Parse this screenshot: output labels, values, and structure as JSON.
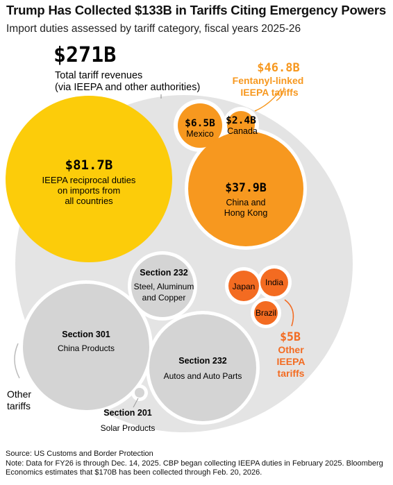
{
  "header": {
    "title": "Trump Has Collected $133B in Tariffs Citing Emergency Powers",
    "subtitle": "Import duties assessed by tariff category, fiscal years 2025-26"
  },
  "footer": {
    "source": "Source: US Customs and Border Protection",
    "note_line1": "Note: Data for FY26 is through Dec. 14, 2025. CBP began collecting IEEPA duties in February 2025. Bloomberg",
    "note_line2": "Economics estimates that $170B has been collected through Feb. 20, 2026."
  },
  "colors": {
    "total": "#e4e4e4",
    "ieepa_reciprocal": "#fccc0a",
    "fentanyl": "#f7981f",
    "other_ieepa": "#f36b21",
    "other_tariffs": "#d4d4d4",
    "accent_text": "#f7981f"
  },
  "chart_data": {
    "type": "bubble",
    "total": {
      "value": "$271B",
      "label_line1": "Total tariff revenues",
      "label_line2": "(via IEEPA and other authorities)"
    },
    "ieepa_reciprocal": {
      "value": "$81.7B",
      "label_line1": "IEEPA reciprocal duties",
      "label_line2": "on imports from",
      "label_line3": "all countries"
    },
    "fentanyl": {
      "value": "$46.8B",
      "label_line1": "Fentanyl-linked",
      "label_line2": "IEEPA tariffs",
      "items": [
        {
          "name": "Mexico",
          "value": "$6.5B"
        },
        {
          "name": "Canada",
          "value": "$2.4B"
        },
        {
          "name_line1": "China and",
          "name_line2": "Hong Kong",
          "value": "$37.9B"
        }
      ]
    },
    "other_ieepa": {
      "value": "$5B",
      "label_line1": "Other",
      "label_line2": "IEEPA",
      "label_line3": "tariffs",
      "items": [
        "Japan",
        "India",
        "Brazil"
      ]
    },
    "other_tariffs": {
      "label_line1": "Other",
      "label_line2": "tariffs",
      "items": [
        {
          "section": "Section 232",
          "line1": "Steel, Aluminum",
          "line2": "and Copper"
        },
        {
          "section": "Section 301",
          "line1": "China Products"
        },
        {
          "section": "Section 232",
          "line1": "Autos and Auto Parts"
        },
        {
          "section": "Section 201",
          "line1": "Solar Products"
        }
      ]
    }
  }
}
